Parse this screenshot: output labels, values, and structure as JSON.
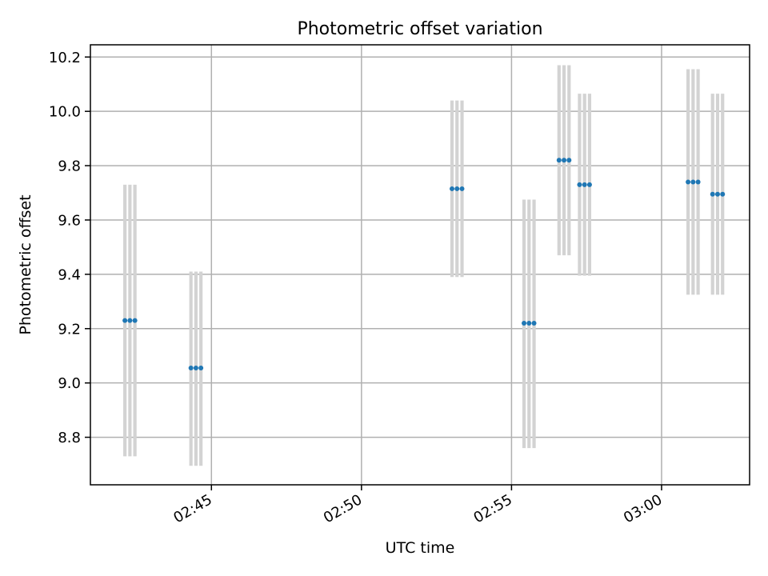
{
  "chart_data": {
    "type": "scatter",
    "title": "Photometric offset variation",
    "xlabel": "UTC time",
    "ylabel": "Photometric offset",
    "xlim": [
      "02:40:58",
      "03:02:56"
    ],
    "ylim": [
      8.625,
      10.245
    ],
    "grid": true,
    "x_ticks": [
      "02:45",
      "02:50",
      "02:55",
      "03:00"
    ],
    "y_ticks": [
      "8.8",
      "9.0",
      "9.2",
      "9.4",
      "9.6",
      "9.8",
      "10.0",
      "10.2"
    ],
    "colors": {
      "points": "#1f77b4",
      "errorbars": "#d3d3d3"
    },
    "groups": [
      {
        "t": [
          "02:42:07",
          "02:42:17",
          "02:42:27"
        ],
        "y": 9.23,
        "ylow": 8.73,
        "yhigh": 9.73
      },
      {
        "t": [
          "02:44:19",
          "02:44:29",
          "02:44:39"
        ],
        "y": 9.055,
        "ylow": 8.695,
        "yhigh": 9.41
      },
      {
        "t": [
          "02:53:01",
          "02:53:11",
          "02:53:21"
        ],
        "y": 9.715,
        "ylow": 9.39,
        "yhigh": 10.04
      },
      {
        "t": [
          "02:55:25",
          "02:55:35",
          "02:55:45"
        ],
        "y": 9.22,
        "ylow": 8.76,
        "yhigh": 9.675
      },
      {
        "t": [
          "02:56:35",
          "02:56:45",
          "02:56:55"
        ],
        "y": 9.82,
        "ylow": 9.47,
        "yhigh": 10.17
      },
      {
        "t": [
          "02:57:16",
          "02:57:26",
          "02:57:36"
        ],
        "y": 9.73,
        "ylow": 9.395,
        "yhigh": 10.065
      },
      {
        "t": [
          "03:00:53",
          "03:01:03",
          "03:01:13"
        ],
        "y": 9.74,
        "ylow": 9.325,
        "yhigh": 10.155
      },
      {
        "t": [
          "03:01:42",
          "03:01:52",
          "03:02:02"
        ],
        "y": 9.695,
        "ylow": 9.325,
        "yhigh": 10.065
      }
    ]
  }
}
